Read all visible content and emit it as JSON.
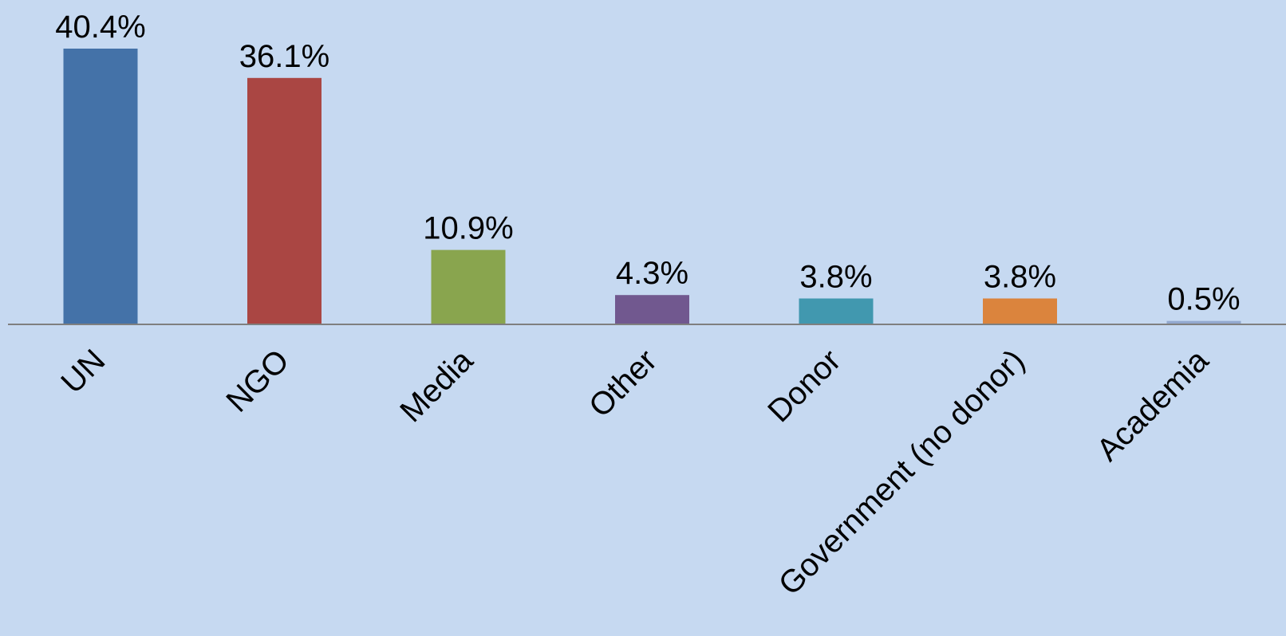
{
  "chart_data": {
    "type": "bar",
    "title": "",
    "xlabel": "",
    "ylabel": "",
    "ylim": [
      0,
      41
    ],
    "grid": false,
    "legend": "none",
    "categories": [
      "UN",
      "NGO",
      "Media",
      "Other",
      "Donor",
      "Government (no donor)",
      "Academia"
    ],
    "values": [
      40.4,
      36.1,
      10.9,
      4.3,
      3.8,
      3.8,
      0.5
    ],
    "value_labels": [
      "40.4%",
      "36.1%",
      "10.9%",
      "4.3%",
      "3.8%",
      "3.8%",
      "0.5%"
    ],
    "colors": [
      "#4472a8",
      "#aa4643",
      "#89a54e",
      "#71588f",
      "#4198af",
      "#db843d",
      "#93a9cf"
    ]
  },
  "style": {
    "background": "#c6d9f1",
    "axis_color": "#7f7f7f",
    "text_color": "#000000"
  }
}
